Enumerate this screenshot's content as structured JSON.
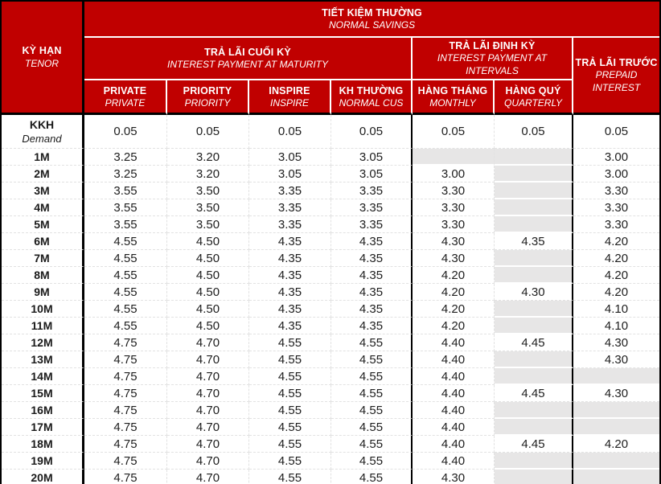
{
  "title": {
    "vi": "TIẾT KIỆM THƯỜNG",
    "en": "NORMAL SAVINGS"
  },
  "tenor_header": {
    "vi": "KỲ HẠN",
    "en": "TENOR"
  },
  "groups": {
    "maturity": {
      "vi": "TRẢ LÃI CUỐI KỲ",
      "en": "INTEREST PAYMENT AT MATURITY"
    },
    "intervals": {
      "vi": "TRẢ LÃI ĐỊNH KỲ",
      "en": "INTEREST PAYMENT AT INTERVALS"
    },
    "prepaid": {
      "vi": "TRẢ LÃI TRƯỚC",
      "en": "PREPAID INTEREST"
    }
  },
  "columns": [
    {
      "vi": "PRIVATE",
      "en": "PRIVATE"
    },
    {
      "vi": "PRIORITY",
      "en": "PRIORITY"
    },
    {
      "vi": "INSPIRE",
      "en": "INSPIRE"
    },
    {
      "vi": "KH THƯỜNG",
      "en": "NORMAL CUS"
    },
    {
      "vi": "HÀNG THÁNG",
      "en": "MONTHLY"
    },
    {
      "vi": "HÀNG QUÝ",
      "en": "QUARTERLY"
    }
  ],
  "colors": {
    "header_red": "#C00000",
    "empty_cell_gray": "#E7E6E6",
    "border_black": "#000000"
  },
  "rows": [
    {
      "tenor": "KKH",
      "tenor_en": "Demand",
      "values": [
        "0.05",
        "0.05",
        "0.05",
        "0.05",
        "0.05",
        "0.05",
        "0.05"
      ]
    },
    {
      "tenor": "1M",
      "values": [
        "3.25",
        "3.20",
        "3.05",
        "3.05",
        null,
        null,
        "3.00"
      ]
    },
    {
      "tenor": "2M",
      "values": [
        "3.25",
        "3.20",
        "3.05",
        "3.05",
        "3.00",
        null,
        "3.00"
      ]
    },
    {
      "tenor": "3M",
      "values": [
        "3.55",
        "3.50",
        "3.35",
        "3.35",
        "3.30",
        null,
        "3.30"
      ]
    },
    {
      "tenor": "4M",
      "values": [
        "3.55",
        "3.50",
        "3.35",
        "3.35",
        "3.30",
        null,
        "3.30"
      ]
    },
    {
      "tenor": "5M",
      "values": [
        "3.55",
        "3.50",
        "3.35",
        "3.35",
        "3.30",
        null,
        "3.30"
      ]
    },
    {
      "tenor": "6M",
      "values": [
        "4.55",
        "4.50",
        "4.35",
        "4.35",
        "4.30",
        "4.35",
        "4.20"
      ]
    },
    {
      "tenor": "7M",
      "values": [
        "4.55",
        "4.50",
        "4.35",
        "4.35",
        "4.30",
        null,
        "4.20"
      ]
    },
    {
      "tenor": "8M",
      "values": [
        "4.55",
        "4.50",
        "4.35",
        "4.35",
        "4.20",
        null,
        "4.20"
      ]
    },
    {
      "tenor": "9M",
      "values": [
        "4.55",
        "4.50",
        "4.35",
        "4.35",
        "4.20",
        "4.30",
        "4.20"
      ]
    },
    {
      "tenor": "10M",
      "values": [
        "4.55",
        "4.50",
        "4.35",
        "4.35",
        "4.20",
        null,
        "4.10"
      ]
    },
    {
      "tenor": "11M",
      "values": [
        "4.55",
        "4.50",
        "4.35",
        "4.35",
        "4.20",
        null,
        "4.10"
      ]
    },
    {
      "tenor": "12M",
      "values": [
        "4.75",
        "4.70",
        "4.55",
        "4.55",
        "4.40",
        "4.45",
        "4.30"
      ]
    },
    {
      "tenor": "13M",
      "values": [
        "4.75",
        "4.70",
        "4.55",
        "4.55",
        "4.40",
        null,
        "4.30"
      ]
    },
    {
      "tenor": "14M",
      "values": [
        "4.75",
        "4.70",
        "4.55",
        "4.55",
        "4.40",
        null,
        null
      ]
    },
    {
      "tenor": "15M",
      "values": [
        "4.75",
        "4.70",
        "4.55",
        "4.55",
        "4.40",
        "4.45",
        "4.30"
      ]
    },
    {
      "tenor": "16M",
      "values": [
        "4.75",
        "4.70",
        "4.55",
        "4.55",
        "4.40",
        null,
        null
      ]
    },
    {
      "tenor": "17M",
      "values": [
        "4.75",
        "4.70",
        "4.55",
        "4.55",
        "4.40",
        null,
        null
      ]
    },
    {
      "tenor": "18M",
      "values": [
        "4.75",
        "4.70",
        "4.55",
        "4.55",
        "4.40",
        "4.45",
        "4.20"
      ]
    },
    {
      "tenor": "19M",
      "values": [
        "4.75",
        "4.70",
        "4.55",
        "4.55",
        "4.40",
        null,
        null
      ]
    },
    {
      "tenor": "20M",
      "values": [
        "4.75",
        "4.70",
        "4.55",
        "4.55",
        "4.30",
        null,
        null
      ]
    }
  ]
}
